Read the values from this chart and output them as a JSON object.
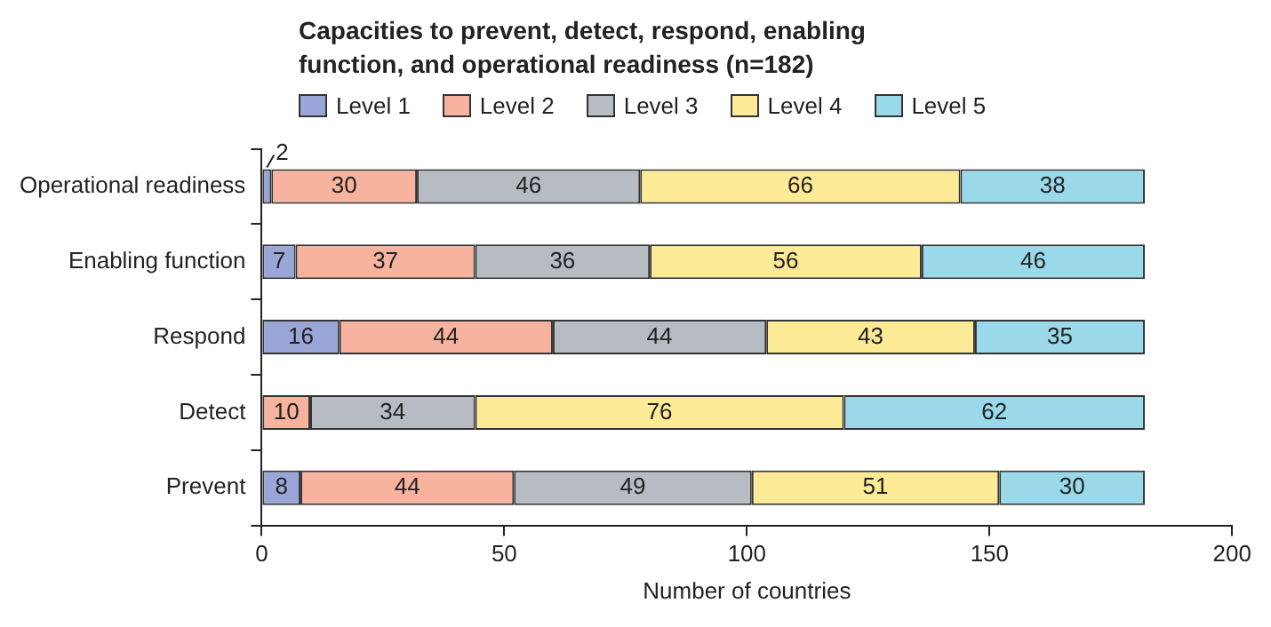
{
  "chart_data": {
    "type": "bar",
    "orientation": "horizontal",
    "stacked": true,
    "title": "Capacities to prevent, detect, respond, enabling function, and operational readiness (n=182)",
    "xlabel": "Number of countries",
    "categories": [
      "Operational readiness",
      "Enabling function",
      "Respond",
      "Detect",
      "Prevent"
    ],
    "xlim": [
      0,
      200
    ],
    "xticks": [
      0,
      50,
      100,
      150,
      200
    ],
    "grid": false,
    "legend": "top left",
    "series": [
      {
        "name": "Level 1",
        "color": "#9aa6d8",
        "values": [
          2,
          7,
          16,
          0,
          8
        ],
        "value_labels": [
          "2",
          "7",
          "16",
          null,
          "8"
        ]
      },
      {
        "name": "Level 2",
        "color": "#f7b39e",
        "values": [
          30,
          37,
          44,
          10,
          44
        ],
        "value_labels": [
          "30",
          "37",
          "44",
          "10",
          "44"
        ]
      },
      {
        "name": "Level 3",
        "color": "#b7bcc3",
        "values": [
          46,
          36,
          44,
          34,
          49
        ],
        "value_labels": [
          "46",
          "36",
          "44",
          "34",
          "49"
        ]
      },
      {
        "name": "Level 4",
        "color": "#fdea96",
        "values": [
          66,
          56,
          43,
          76,
          51
        ],
        "value_labels": [
          "66",
          "56",
          "43",
          "76",
          "51"
        ]
      },
      {
        "name": "Level 5",
        "color": "#9ad9e9",
        "values": [
          38,
          46,
          35,
          62,
          30
        ],
        "value_labels": [
          "38",
          "46",
          "35",
          "62",
          "30"
        ]
      }
    ]
  }
}
